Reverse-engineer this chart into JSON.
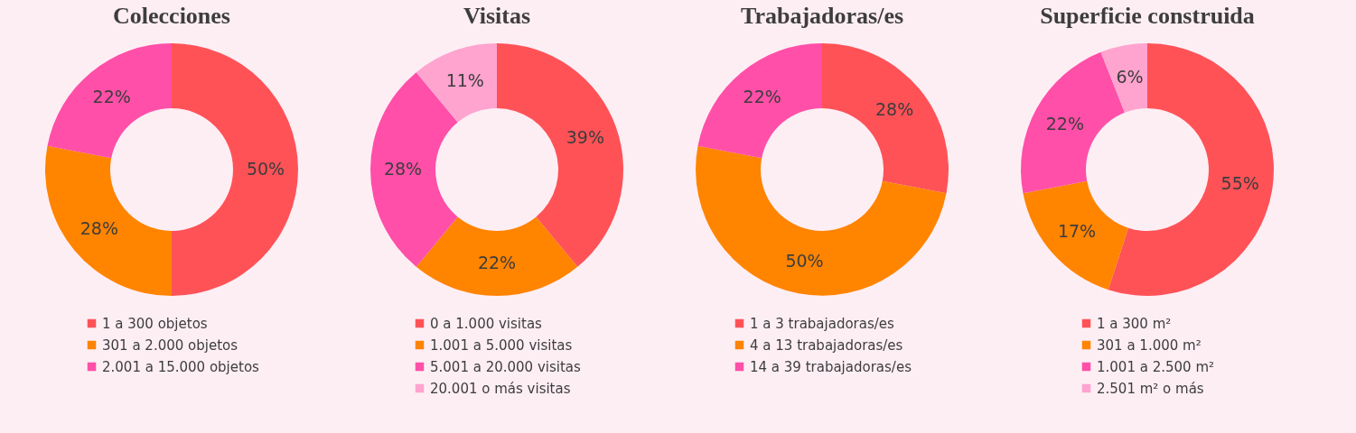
{
  "chart_data": [
    {
      "type": "donut",
      "title": "Colecciones",
      "categories": [
        "1 a 300 objetos",
        "301 a 2.000 objetos",
        "2.001 a 15.000 objetos"
      ],
      "values": [
        50,
        28,
        22
      ],
      "value_labels": [
        "50%",
        "28%",
        "22%"
      ],
      "colors": [
        "#ff5257",
        "#ff8400",
        "#ff4fa8"
      ],
      "legend": "bottom"
    },
    {
      "type": "donut",
      "title": "Visitas",
      "categories": [
        "0 a 1.000 visitas",
        "1.001 a 5.000 visitas",
        "5.001 a 20.000 visitas",
        "20.001 o más visitas"
      ],
      "values": [
        39,
        22,
        28,
        11
      ],
      "value_labels": [
        "39%",
        "22%",
        "28%",
        "11%"
      ],
      "colors": [
        "#ff5257",
        "#ff8400",
        "#ff4fa8",
        "#ffa3cf"
      ],
      "legend": "bottom"
    },
    {
      "type": "donut",
      "title": "Trabajadoras/es",
      "categories": [
        "1 a 3 trabajadoras/es",
        "4 a 13 trabajadoras/es",
        "14 a 39 trabajadoras/es"
      ],
      "values": [
        28,
        50,
        22
      ],
      "value_labels": [
        "28%",
        "50%",
        "22%"
      ],
      "colors": [
        "#ff5257",
        "#ff8400",
        "#ff4fa8"
      ],
      "legend": "bottom"
    },
    {
      "type": "donut",
      "title": "Superficie construida",
      "categories": [
        "1 a 300 m²",
        "301 a 1.000 m²",
        "1.001 a 2.500 m²",
        "2.501 m² o más"
      ],
      "values": [
        55,
        17,
        22,
        6
      ],
      "value_labels": [
        "55%",
        "17%",
        "22%",
        "6%"
      ],
      "colors": [
        "#ff5257",
        "#ff8400",
        "#ff4fa8",
        "#ffa3cf"
      ],
      "legend": "bottom"
    }
  ]
}
